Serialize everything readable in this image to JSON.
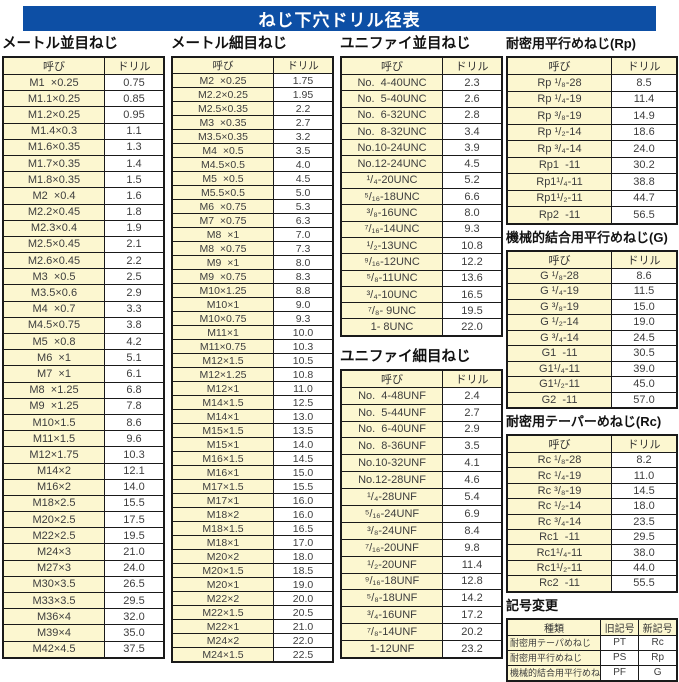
{
  "title": "ねじ下穴ドリル径表",
  "colors": {
    "title_bg": "#0d4fa5",
    "header_bg": "#fcf7d0",
    "border": "#1a1a1a"
  },
  "tables": {
    "metric_coarse": {
      "title": "メートル並目ねじ",
      "headers": [
        "呼び",
        "ドリル"
      ],
      "rows": [
        [
          "M1  ×0.25",
          "0.75"
        ],
        [
          "M1.1×0.25",
          "0.85"
        ],
        [
          "M1.2×0.25",
          "0.95"
        ],
        [
          "M1.4×0.3",
          "1.1"
        ],
        [
          "M1.6×0.35",
          "1.3"
        ],
        [
          "M1.7×0.35",
          "1.4"
        ],
        [
          "M1.8×0.35",
          "1.5"
        ],
        [
          "M2  ×0.4",
          "1.6"
        ],
        [
          "M2.2×0.45",
          "1.8"
        ],
        [
          "M2.3×0.4",
          "1.9"
        ],
        [
          "M2.5×0.45",
          "2.1"
        ],
        [
          "M2.6×0.45",
          "2.2"
        ],
        [
          "M3  ×0.5",
          "2.5"
        ],
        [
          "M3.5×0.6",
          "2.9"
        ],
        [
          "M4  ×0.7",
          "3.3"
        ],
        [
          "M4.5×0.75",
          "3.8"
        ],
        [
          "M5  ×0.8",
          "4.2"
        ],
        [
          "M6  ×1",
          "5.1"
        ],
        [
          "M7  ×1",
          "6.1"
        ],
        [
          "M8  ×1.25",
          "6.8"
        ],
        [
          "M9  ×1.25",
          "7.8"
        ],
        [
          "M10×1.5",
          "8.6"
        ],
        [
          "M11×1.5",
          "9.6"
        ],
        [
          "M12×1.75",
          "10.3"
        ],
        [
          "M14×2",
          "12.1"
        ],
        [
          "M16×2",
          "14.0"
        ],
        [
          "M18×2.5",
          "15.5"
        ],
        [
          "M20×2.5",
          "17.5"
        ],
        [
          "M22×2.5",
          "19.5"
        ],
        [
          "M24×3",
          "21.0"
        ],
        [
          "M27×3",
          "24.0"
        ],
        [
          "M30×3.5",
          "26.5"
        ],
        [
          "M33×3.5",
          "29.5"
        ],
        [
          "M36×4",
          "32.0"
        ],
        [
          "M39×4",
          "35.0"
        ],
        [
          "M42×4.5",
          "37.5"
        ]
      ]
    },
    "metric_fine": {
      "title": "メートル細目ねじ",
      "headers": [
        "呼び",
        "ドリル"
      ],
      "rows": [
        [
          "M2  ×0.25",
          "1.75"
        ],
        [
          "M2.2×0.25",
          "1.95"
        ],
        [
          "M2.5×0.35",
          "2.2"
        ],
        [
          "M3  ×0.35",
          "2.7"
        ],
        [
          "M3.5×0.35",
          "3.2"
        ],
        [
          "M4  ×0.5",
          "3.5"
        ],
        [
          "M4.5×0.5",
          "4.0"
        ],
        [
          "M5  ×0.5",
          "4.5"
        ],
        [
          "M5.5×0.5",
          "5.0"
        ],
        [
          "M6  ×0.75",
          "5.3"
        ],
        [
          "M7  ×0.75",
          "6.3"
        ],
        [
          "M8  ×1",
          "7.0"
        ],
        [
          "M8  ×0.75",
          "7.3"
        ],
        [
          "M9  ×1",
          "8.0"
        ],
        [
          "M9  ×0.75",
          "8.3"
        ],
        [
          "M10×1.25",
          "8.8"
        ],
        [
          "M10×1",
          "9.0"
        ],
        [
          "M10×0.75",
          "9.3"
        ],
        [
          "M11×1",
          "10.0"
        ],
        [
          "M11×0.75",
          "10.3"
        ],
        [
          "M12×1.5",
          "10.5"
        ],
        [
          "M12×1.25",
          "10.8"
        ],
        [
          "M12×1",
          "11.0"
        ],
        [
          "M14×1.5",
          "12.5"
        ],
        [
          "M14×1",
          "13.0"
        ],
        [
          "M15×1.5",
          "13.5"
        ],
        [
          "M15×1",
          "14.0"
        ],
        [
          "M16×1.5",
          "14.5"
        ],
        [
          "M16×1",
          "15.0"
        ],
        [
          "M17×1.5",
          "15.5"
        ],
        [
          "M17×1",
          "16.0"
        ],
        [
          "M18×2",
          "16.0"
        ],
        [
          "M18×1.5",
          "16.5"
        ],
        [
          "M18×1",
          "17.0"
        ],
        [
          "M20×2",
          "18.0"
        ],
        [
          "M20×1.5",
          "18.5"
        ],
        [
          "M20×1",
          "19.0"
        ],
        [
          "M22×2",
          "20.0"
        ],
        [
          "M22×1.5",
          "20.5"
        ],
        [
          "M22×1",
          "21.0"
        ],
        [
          "M24×2",
          "22.0"
        ],
        [
          "M24×1.5",
          "22.5"
        ]
      ]
    },
    "unified_coarse": {
      "title": "ユニファイ並目ねじ",
      "headers": [
        "呼び",
        "ドリル"
      ],
      "rows": [
        [
          "No.  4-40UNC",
          "2.3"
        ],
        [
          "No.  5-40UNC",
          "2.6"
        ],
        [
          "No.  6-32UNC",
          "2.8"
        ],
        [
          "No.  8-32UNC",
          "3.4"
        ],
        [
          "No.10-24UNC",
          "3.9"
        ],
        [
          "No.12-24UNC",
          "4.5"
        ],
        [
          "¹/₄-20UNC",
          "5.2"
        ],
        [
          "⁵/₁₆-18UNC",
          "6.6"
        ],
        [
          "³/₈-16UNC",
          "8.0"
        ],
        [
          "⁷/₁₆-14UNC",
          "9.3"
        ],
        [
          "¹/₂-13UNC",
          "10.8"
        ],
        [
          "⁹/₁₆-12UNC",
          "12.2"
        ],
        [
          "⁵/₈-11UNC",
          "13.6"
        ],
        [
          "³/₄-10UNC",
          "16.5"
        ],
        [
          "⁷/₈- 9UNC",
          "19.5"
        ],
        [
          "1- 8UNC",
          "22.0"
        ]
      ]
    },
    "unified_fine": {
      "title": "ユニファイ細目ねじ",
      "headers": [
        "呼び",
        "ドリル"
      ],
      "rows": [
        [
          "No.  4-48UNF",
          "2.4"
        ],
        [
          "No.  5-44UNF",
          "2.7"
        ],
        [
          "No.  6-40UNF",
          "2.9"
        ],
        [
          "No.  8-36UNF",
          "3.5"
        ],
        [
          "No.10-32UNF",
          "4.1"
        ],
        [
          "No.12-28UNF",
          "4.6"
        ],
        [
          "¹/₄-28UNF",
          "5.4"
        ],
        [
          "⁵/₁₆-24UNF",
          "6.9"
        ],
        [
          "³/₈-24UNF",
          "8.4"
        ],
        [
          "⁷/₁₆-20UNF",
          "9.8"
        ],
        [
          "¹/₂-20UNF",
          "11.4"
        ],
        [
          "⁹/₁₆-18UNF",
          "12.8"
        ],
        [
          "⁵/₈-18UNF",
          "14.2"
        ],
        [
          "³/₄-16UNF",
          "17.2"
        ],
        [
          "⁷/₈-14UNF",
          "20.2"
        ],
        [
          "1-12UNF",
          "23.2"
        ]
      ]
    },
    "rp": {
      "title": "耐密用平行めねじ(Rp)",
      "headers": [
        "呼び",
        "ドリル"
      ],
      "rows": [
        [
          "Rp ¹/₈-28",
          "8.5"
        ],
        [
          "Rp ¹/₄-19",
          "11.4"
        ],
        [
          "Rp ³/₈-19",
          "14.9"
        ],
        [
          "Rp ¹/₂-14",
          "18.6"
        ],
        [
          "Rp ³/₄-14",
          "24.0"
        ],
        [
          "Rp1  -11",
          "30.2"
        ],
        [
          "Rp1¹/₄-11",
          "38.8"
        ],
        [
          "Rp1¹/₂-11",
          "44.7"
        ],
        [
          "Rp2  -11",
          "56.5"
        ]
      ]
    },
    "g": {
      "title": "機械的結合用平行めねじ(G)",
      "headers": [
        "呼び",
        "ドリル"
      ],
      "rows": [
        [
          "G ¹/₈-28",
          "8.6"
        ],
        [
          "G ¹/₄-19",
          "11.5"
        ],
        [
          "G ³/₈-19",
          "15.0"
        ],
        [
          "G ¹/₂-14",
          "19.0"
        ],
        [
          "G ³/₄-14",
          "24.5"
        ],
        [
          "G1  -11",
          "30.5"
        ],
        [
          "G1¹/₄-11",
          "39.0"
        ],
        [
          "G1¹/₂-11",
          "45.0"
        ],
        [
          "G2  -11",
          "57.0"
        ]
      ]
    },
    "rc": {
      "title": "耐密用テーパーめねじ(Rc)",
      "headers": [
        "呼び",
        "ドリル"
      ],
      "rows": [
        [
          "Rc ¹/₈-28",
          "8.2"
        ],
        [
          "Rc ¹/₄-19",
          "11.0"
        ],
        [
          "Rc ³/₈-19",
          "14.5"
        ],
        [
          "Rc ¹/₂-14",
          "18.0"
        ],
        [
          "Rc ³/₄-14",
          "23.5"
        ],
        [
          "Rc1  -11",
          "29.5"
        ],
        [
          "Rc1¹/₄-11",
          "38.0"
        ],
        [
          "Rc1¹/₂-11",
          "44.0"
        ],
        [
          "Rc2  -11",
          "55.5"
        ]
      ]
    },
    "symbol_change": {
      "title": "記号変更",
      "headers": [
        "種類",
        "旧記号",
        "新記号"
      ],
      "rows": [
        [
          "耐密用テーパめねじ",
          "PT",
          "Rc"
        ],
        [
          "耐密用平行めねじ",
          "PS",
          "Rp"
        ],
        [
          "機械的結合用平行めねじ",
          "PF",
          "G"
        ]
      ]
    }
  }
}
